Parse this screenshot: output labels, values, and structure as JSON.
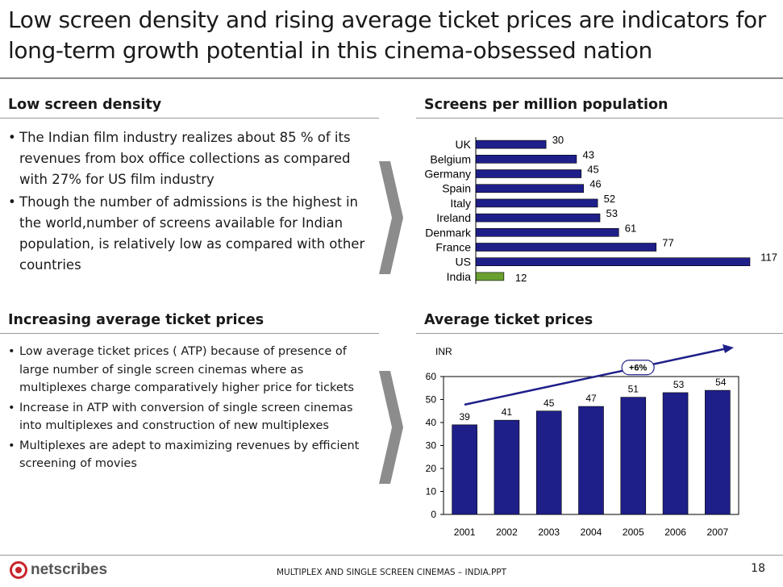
{
  "slide": {
    "title": "Low screen density and rising average ticket prices are indicators for long-term growth potential in this cinema-obsessed nation",
    "footer_text": "MULTIPLEX AND SINGLE SCREEN CINEMAS – INDIA.PPT",
    "page_number": "18",
    "logo_text": "netscribes"
  },
  "section1": {
    "heading": "Low screen density",
    "bullet_symbol": "•",
    "bullets": [
      "The Indian film industry realizes about 85 % of its revenues from  box office collections as compared with 27% for US film industry",
      "Though the number of admissions is the highest in the world,number of screens available for Indian population, is relatively low as compared with other countries"
    ]
  },
  "section2": {
    "heading": "Increasing average ticket prices",
    "bullet_symbol": "•",
    "bullets": [
      "Low average ticket prices ( ATP) because of presence of large number of single screen cinemas where as multiplexes  charge comparatively higher price for tickets",
      "Increase in ATP with conversion of single screen cinemas into multiplexes and construction of new multiplexes",
      "Multiplexes are adept to maximizing revenues by efficient screening of movies"
    ]
  },
  "colors": {
    "navy": "#1f1f8a",
    "green": "#6aa02f",
    "accent_gray": "#8c8c8c",
    "logo_red": "#c8262c"
  },
  "chart_data": [
    {
      "type": "bar",
      "orientation": "horizontal",
      "title": "Screens per million population",
      "categories": [
        "UK",
        "Belgium",
        "Germany",
        "Spain",
        "Italy",
        "Ireland",
        "Denmark",
        "France",
        "US",
        "India"
      ],
      "values": [
        30,
        43,
        45,
        46,
        52,
        53,
        61,
        77,
        117,
        12
      ],
      "highlight": "India",
      "xlim": [
        0,
        117
      ]
    },
    {
      "type": "bar",
      "title": "Average ticket prices",
      "ylabel": "INR",
      "categories": [
        "2001",
        "2002",
        "2003",
        "2004",
        "2005",
        "2006",
        "2007"
      ],
      "values": [
        39,
        41,
        45,
        47,
        51,
        53,
        54
      ],
      "ylim": [
        0,
        60
      ],
      "yticks": [
        0,
        10,
        20,
        30,
        40,
        50,
        60
      ],
      "annotation": "+6%"
    }
  ]
}
